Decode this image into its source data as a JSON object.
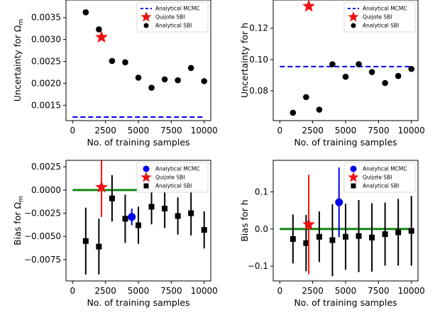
{
  "chart_data": [
    {
      "type": "scatter",
      "xlabel": "No. of training samples",
      "ylabel": "Uncertainty for Ω",
      "ylabel_sub": "m",
      "xlim": [
        -500,
        10500
      ],
      "ylim": [
        0.00115,
        0.0039
      ],
      "xticks": [
        0,
        2500,
        5000,
        7500,
        10000
      ],
      "xtick_labels": [
        "0",
        "2500",
        "5000",
        "7500",
        "10000"
      ],
      "yticks": [
        0.0015,
        0.002,
        0.0025,
        0.003,
        0.0035
      ],
      "ytick_labels": [
        "0.0015",
        "0.0020",
        "0.0025",
        "0.0030",
        "0.0035"
      ],
      "legend": {
        "placement": "top-right",
        "entries": [
          "Analytical MCMC",
          "Quijote SBI",
          "Analytical SBI"
        ]
      },
      "mcmc_line": {
        "style": "dashed",
        "color": "#0000ee",
        "y": 0.00123
      },
      "quijote": {
        "marker": "star",
        "color": "#ee1111",
        "x": [
          2200
        ],
        "y": [
          0.00305
        ]
      },
      "sbi": {
        "marker": "circle",
        "color": "#000000",
        "x": [
          1000,
          2000,
          3000,
          4000,
          5000,
          6000,
          7000,
          8000,
          9000,
          10000
        ],
        "y": [
          0.00362,
          0.00323,
          0.00251,
          0.00248,
          0.00213,
          0.0019,
          0.00209,
          0.00207,
          0.00235,
          0.00205
        ]
      }
    },
    {
      "type": "scatter",
      "xlabel": "No. of training samples",
      "ylabel": "Uncertainty for h",
      "xlim": [
        -500,
        10500
      ],
      "ylim": [
        0.061,
        0.138
      ],
      "xticks": [
        0,
        2500,
        5000,
        7500,
        10000
      ],
      "xtick_labels": [
        "0",
        "2500",
        "5000",
        "7500",
        "10000"
      ],
      "yticks": [
        0.08,
        0.1,
        0.12
      ],
      "ytick_labels": [
        "0.08",
        "0.10",
        "0.12"
      ],
      "legend": {
        "placement": "top-right",
        "entries": [
          "Analytical MCMC",
          "Quijote SBI",
          "Analytical SBI"
        ]
      },
      "mcmc_line": {
        "style": "dashed",
        "color": "#0000ee",
        "y": 0.0955
      },
      "quijote": {
        "marker": "star",
        "color": "#ee1111",
        "x": [
          2200
        ],
        "y": [
          0.134
        ]
      },
      "sbi": {
        "marker": "circle",
        "color": "#000000",
        "x": [
          1000,
          2000,
          3000,
          4000,
          5000,
          6000,
          7000,
          8000,
          9000,
          10000
        ],
        "y": [
          0.066,
          0.076,
          0.068,
          0.097,
          0.089,
          0.097,
          0.092,
          0.085,
          0.0895,
          0.094
        ]
      }
    },
    {
      "type": "scatter",
      "xlabel": "No. of training samples",
      "ylabel": "Bias for Ω",
      "ylabel_sub": "m",
      "xlim": [
        -500,
        10500
      ],
      "ylim": [
        -0.0098,
        0.0032
      ],
      "xticks": [
        0,
        2500,
        5000,
        7500,
        10000
      ],
      "xtick_labels": [
        "0",
        "2500",
        "5000",
        "7500",
        "10000"
      ],
      "yticks": [
        -0.0075,
        -0.005,
        -0.0025,
        0.0,
        0.0025
      ],
      "ytick_labels": [
        "−0.0075",
        "−0.0050",
        "−0.0025",
        "0.0000",
        "0.0025"
      ],
      "legend": {
        "placement": "top-right",
        "entries": [
          "Analytical MCMC",
          "Quijote SBI",
          "Analytical SBI"
        ]
      },
      "zero_line": {
        "color": "#118811",
        "y": 0.0
      },
      "mcmc": {
        "marker": "circle",
        "color": "#0000ee",
        "x": [
          4500
        ],
        "y": [
          -0.0029
        ],
        "err": [
          0.0009
        ]
      },
      "quijote": {
        "marker": "star",
        "color": "#ee1111",
        "x": [
          2200
        ],
        "y": [
          0.0003
        ],
        "err": [
          0.0032
        ]
      },
      "sbi": {
        "marker": "square",
        "color": "#000000",
        "x": [
          1000,
          2000,
          3000,
          4000,
          5000,
          6000,
          7000,
          8000,
          9000,
          10000
        ],
        "y": [
          -0.0055,
          -0.0061,
          -0.0009,
          -0.0031,
          -0.0038,
          -0.0018,
          -0.002,
          -0.0028,
          -0.0025,
          -0.0043
        ],
        "err": [
          0.0036,
          0.003,
          0.0025,
          0.0026,
          0.002,
          0.0019,
          0.0021,
          0.002,
          0.0024,
          0.002
        ]
      }
    },
    {
      "type": "scatter",
      "xlabel": "No. of training samples",
      "ylabel": "Bias for h",
      "xlim": [
        -500,
        10500
      ],
      "ylim": [
        -0.14,
        0.185
      ],
      "xticks": [
        0,
        2500,
        5000,
        7500,
        10000
      ],
      "xtick_labels": [
        "0",
        "2500",
        "5000",
        "7500",
        "10000"
      ],
      "yticks": [
        -0.1,
        0.0,
        0.1
      ],
      "ytick_labels": [
        "−0.1",
        "0.0",
        "0.1"
      ],
      "legend": {
        "placement": "top-right",
        "entries": [
          "Analytical MCMC",
          "Quijote SBI",
          "Analytical SBI"
        ]
      },
      "zero_line": {
        "color": "#118811",
        "y": 0.0
      },
      "mcmc": {
        "marker": "circle",
        "color": "#0000ee",
        "x": [
          4500
        ],
        "y": [
          0.072
        ],
        "err": [
          0.094
        ]
      },
      "quijote": {
        "marker": "star",
        "color": "#ee1111",
        "x": [
          2200
        ],
        "y": [
          0.012
        ],
        "err": [
          0.134
        ]
      },
      "sbi": {
        "marker": "square",
        "color": "#000000",
        "x": [
          1000,
          2000,
          3000,
          4000,
          5000,
          6000,
          7000,
          8000,
          9000,
          10000
        ],
        "y": [
          -0.027,
          -0.038,
          -0.021,
          -0.03,
          -0.021,
          -0.019,
          -0.023,
          -0.014,
          -0.009,
          -0.005
        ],
        "err": [
          0.066,
          0.076,
          0.068,
          0.097,
          0.089,
          0.097,
          0.092,
          0.085,
          0.09,
          0.094
        ]
      }
    }
  ]
}
